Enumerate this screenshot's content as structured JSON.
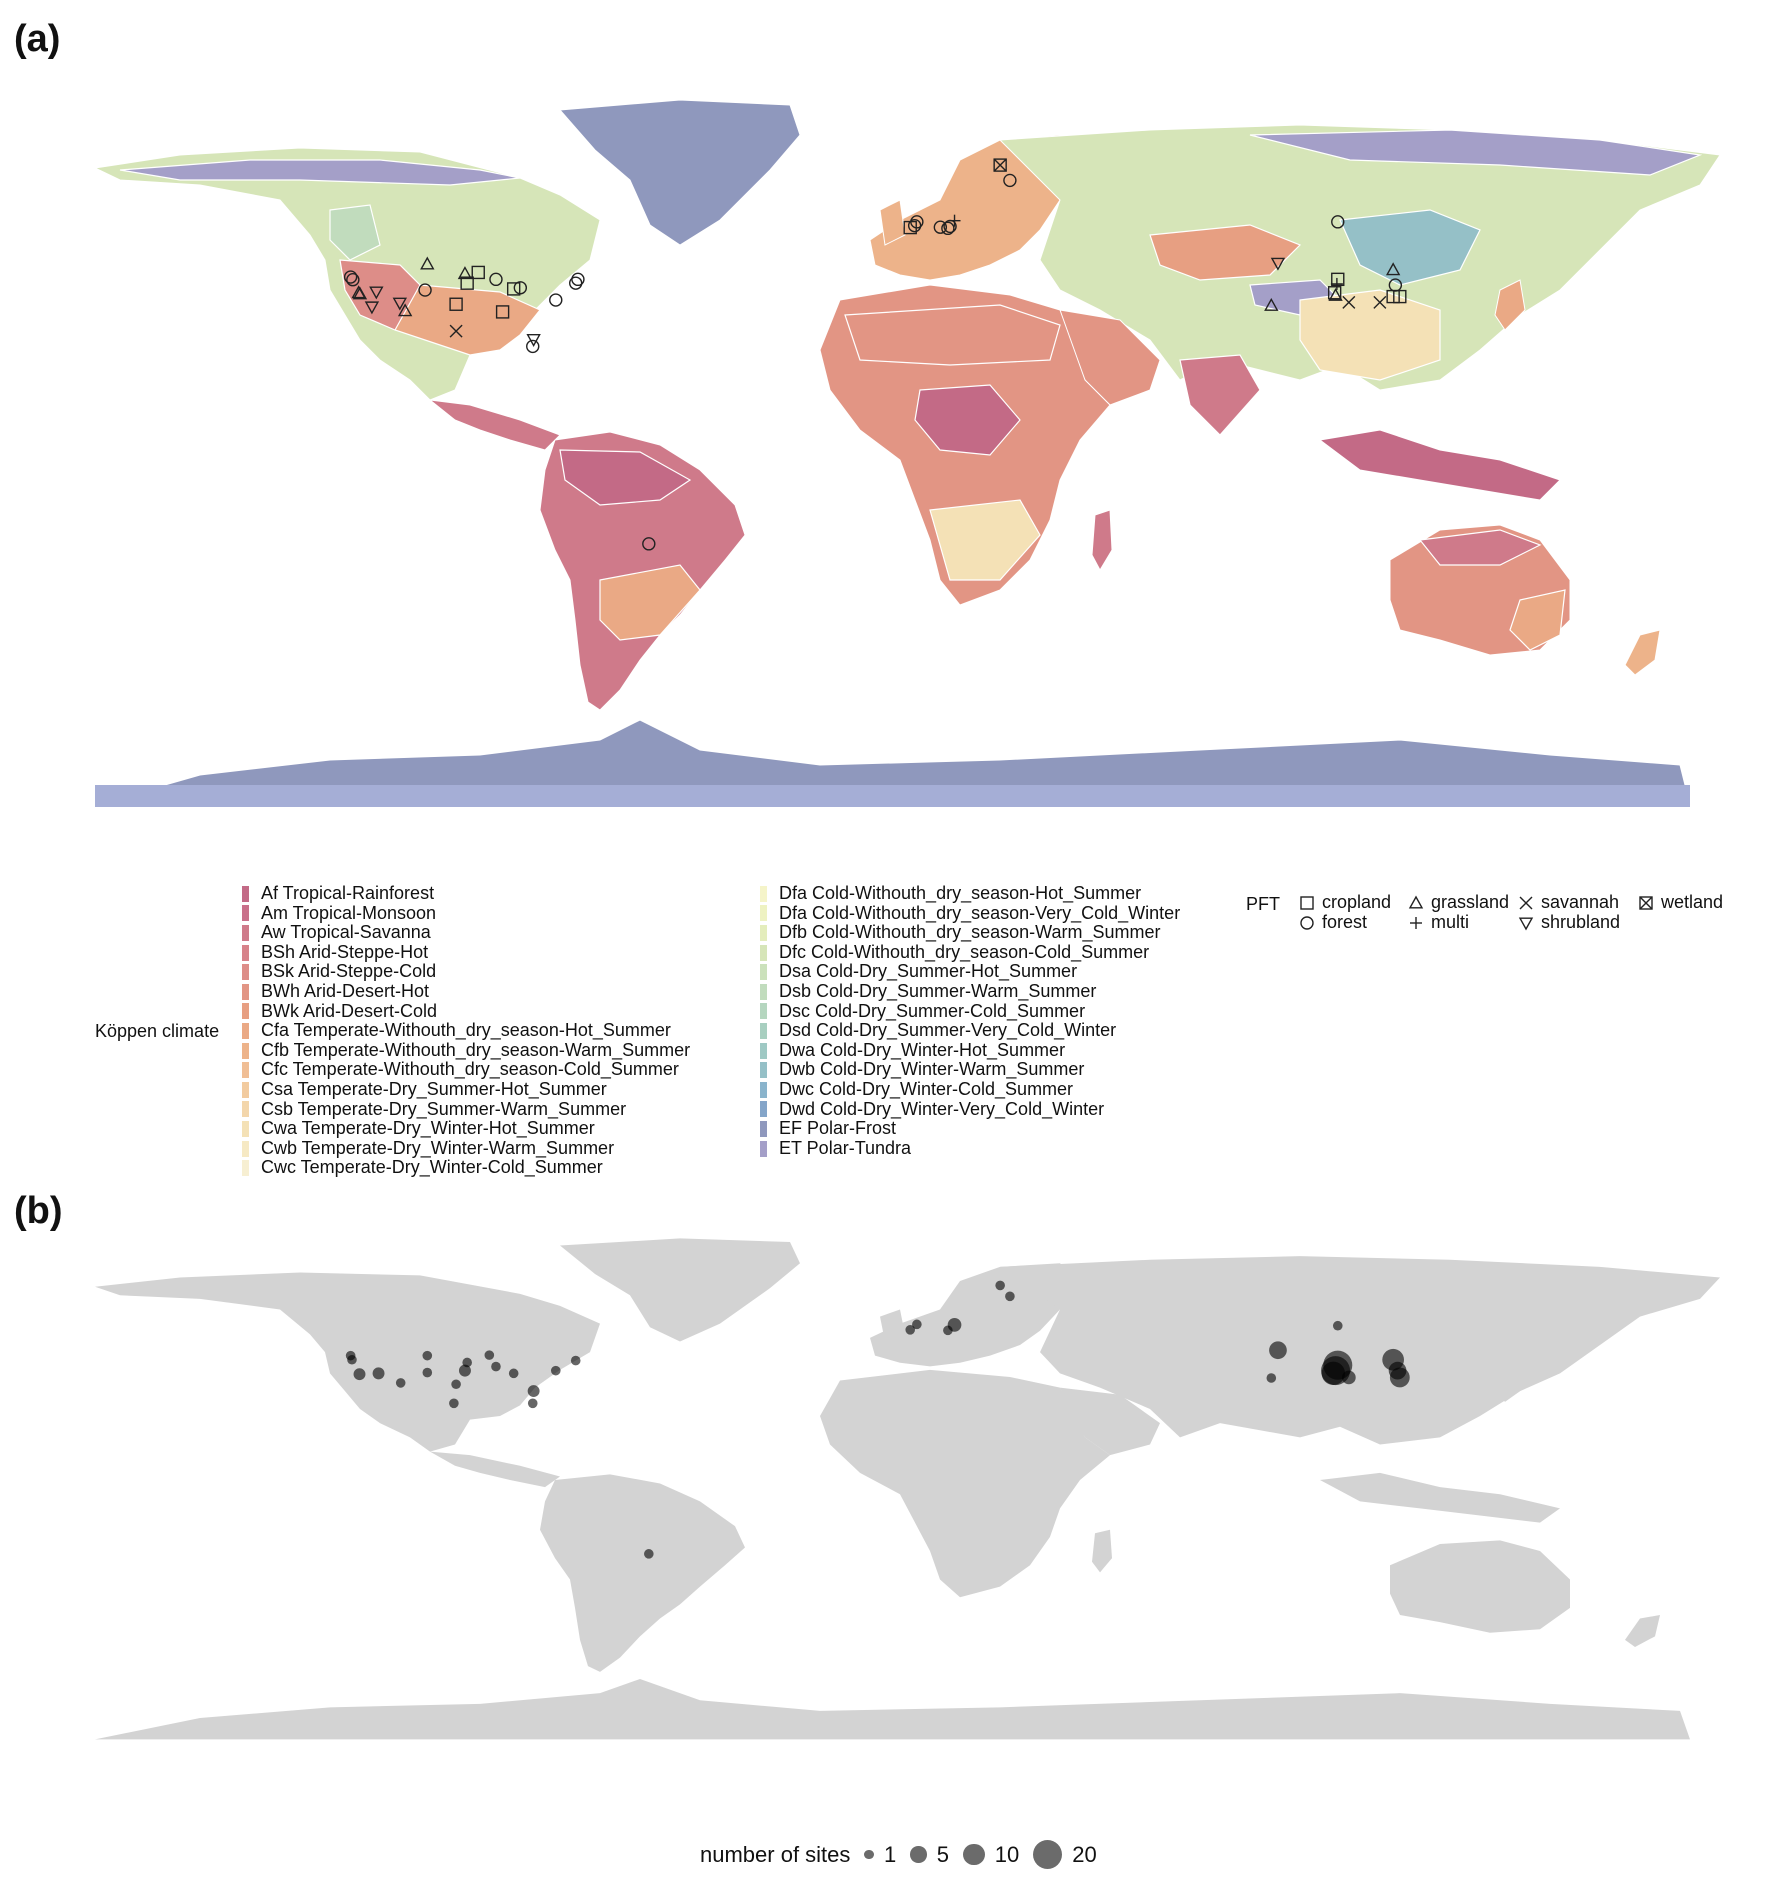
{
  "panels": {
    "a_label": "(a)",
    "b_label": "(b)"
  },
  "colors": {
    "land_b": "#d3d3d3",
    "boundary": "#ffffff",
    "antarctica": "#8f98bd",
    "antarctica_shelf": "#a5aed6",
    "site_dot": "#000000"
  },
  "legend_climate": {
    "title": "Köppen climate",
    "items": [
      {
        "code": "Af",
        "label": "Af Tropical-Rainforest",
        "color": "#c36a86"
      },
      {
        "code": "Am",
        "label": "Am Tropical-Monsoon",
        "color": "#c9708a"
      },
      {
        "code": "Aw",
        "label": "Aw Tropical-Savanna",
        "color": "#cf7a8a"
      },
      {
        "code": "BSh",
        "label": "BSh Arid-Steppe-Hot",
        "color": "#d7828a"
      },
      {
        "code": "BSk",
        "label": "BSk Arid-Steppe-Cold",
        "color": "#dd8d88"
      },
      {
        "code": "BWh",
        "label": "BWh Arid-Desert-Hot",
        "color": "#e29584"
      },
      {
        "code": "BWk",
        "label": "BWk Arid-Desert-Cold",
        "color": "#e79f82"
      },
      {
        "code": "Cfa",
        "label": "Cfa Temperate-Withouth_dry_season-Hot_Summer",
        "color": "#eaa985"
      },
      {
        "code": "Cfb",
        "label": "Cfb Temperate-Withouth_dry_season-Warm_Summer",
        "color": "#edb38a"
      },
      {
        "code": "Cfc",
        "label": "Cfc Temperate-Withouth_dry_season-Cold_Summer",
        "color": "#f0be95"
      },
      {
        "code": "Csa",
        "label": "Csa Temperate-Dry_Summer-Hot_Summer",
        "color": "#f2cb9f"
      },
      {
        "code": "Csb",
        "label": "Csb Temperate-Dry_Summer-Warm_Summer",
        "color": "#f3d6ab"
      },
      {
        "code": "Cwa",
        "label": "Cwa Temperate-Dry_Winter-Hot_Summer",
        "color": "#f4e1b6"
      },
      {
        "code": "Cwb",
        "label": "Cwb Temperate-Dry_Winter-Warm_Summer",
        "color": "#f6e9c4"
      },
      {
        "code": "Cwc",
        "label": "Cwc Temperate-Dry_Winter-Cold_Summer",
        "color": "#f7efd2"
      },
      {
        "code": "Dfa",
        "label": "Dfa Cold-Withouth_dry_season-Hot_Summer",
        "color": "#f5f4c9"
      },
      {
        "code": "Dfa2",
        "label": "Dfa Cold-Withouth_dry_season-Very_Cold_Winter",
        "color": "#eef2c2"
      },
      {
        "code": "Dfb",
        "label": "Dfb Cold-Withouth_dry_season-Warm_Summer",
        "color": "#e4edbc"
      },
      {
        "code": "Dfc",
        "label": "Dfc Cold-Withouth_dry_season-Cold_Summer",
        "color": "#d6e5b8"
      },
      {
        "code": "Dsa",
        "label": "Dsa Cold-Dry_Summer-Hot_Summer",
        "color": "#cbe1bb"
      },
      {
        "code": "Dsb",
        "label": "Dsb Cold-Dry_Summer-Warm_Summer",
        "color": "#c1dcbd"
      },
      {
        "code": "Dsc",
        "label": "Dsc Cold-Dry_Summer-Cold_Summer",
        "color": "#b5d6bf"
      },
      {
        "code": "Dsd",
        "label": "Dsd Cold-Dry_Summer-Very_Cold_Winter",
        "color": "#a8cfc0"
      },
      {
        "code": "Dwa",
        "label": "Dwa Cold-Dry_Winter-Hot_Summer",
        "color": "#9fc9c4"
      },
      {
        "code": "Dwb",
        "label": "Dwb Cold-Dry_Winter-Warm_Summer",
        "color": "#95c0c7"
      },
      {
        "code": "Dwc",
        "label": "Dwc Cold-Dry_Winter-Cold_Summer",
        "color": "#8ab4cc"
      },
      {
        "code": "Dwd",
        "label": "Dwd Cold-Dry_Winter-Very_Cold_Winter",
        "color": "#84a5c9"
      },
      {
        "code": "EF",
        "label": "EF Polar-Frost",
        "color": "#8f98bd"
      },
      {
        "code": "ET",
        "label": "ET Polar-Tundra",
        "color": "#a49fc8"
      }
    ]
  },
  "legend_pft": {
    "title": "PFT",
    "items": [
      {
        "label": "cropland",
        "symbol": "square"
      },
      {
        "label": "forest",
        "symbol": "circle"
      },
      {
        "label": "grassland",
        "symbol": "triangle-up"
      },
      {
        "label": "multi",
        "symbol": "plus"
      },
      {
        "label": "savannah",
        "symbol": "cross"
      },
      {
        "label": "shrubland",
        "symbol": "triangle-down"
      },
      {
        "label": "wetland",
        "symbol": "square-cross"
      }
    ]
  },
  "legend_size": {
    "title": "number of sites",
    "items": [
      {
        "label": "1",
        "value": 1
      },
      {
        "label": "5",
        "value": 5
      },
      {
        "label": "10",
        "value": 10
      },
      {
        "label": "20",
        "value": 20
      }
    ]
  },
  "sites_a": [
    {
      "lon": -122.3,
      "lat": 38.6,
      "pft": "circle"
    },
    {
      "lon": -121.8,
      "lat": 37.9,
      "pft": "circle"
    },
    {
      "lon": -120.5,
      "lat": 34.5,
      "pft": "triangle-up"
    },
    {
      "lon": -120.2,
      "lat": 34.2,
      "pft": "triangle-up"
    },
    {
      "lon": -116.5,
      "lat": 34.7,
      "pft": "triangle-down"
    },
    {
      "lon": -117.5,
      "lat": 30.8,
      "pft": "triangle-down"
    },
    {
      "lon": -111.2,
      "lat": 31.8,
      "pft": "triangle-down"
    },
    {
      "lon": -110.0,
      "lat": 29.8,
      "pft": "triangle-up"
    },
    {
      "lon": -105.0,
      "lat": 42.0,
      "pft": "triangle-up"
    },
    {
      "lon": -105.5,
      "lat": 35.2,
      "pft": "circle"
    },
    {
      "lon": -96.5,
      "lat": 39.5,
      "pft": "triangle-up"
    },
    {
      "lon": -93.5,
      "lat": 39.8,
      "pft": "square"
    },
    {
      "lon": -96.0,
      "lat": 37.0,
      "pft": "square"
    },
    {
      "lon": -98.5,
      "lat": 31.5,
      "pft": "square"
    },
    {
      "lon": -89.5,
      "lat": 38.0,
      "pft": "circle"
    },
    {
      "lon": -85.5,
      "lat": 35.5,
      "pft": "square"
    },
    {
      "lon": -84.0,
      "lat": 35.8,
      "pft": "circle"
    },
    {
      "lon": -88.0,
      "lat": 29.5,
      "pft": "square"
    },
    {
      "lon": -76.0,
      "lat": 32.6,
      "pft": "circle"
    },
    {
      "lon": -71.5,
      "lat": 37.0,
      "pft": "circle"
    },
    {
      "lon": -71.0,
      "lat": 38.0,
      "pft": "circle"
    },
    {
      "lon": -98.5,
      "lat": 24.5,
      "pft": "cross"
    },
    {
      "lon": -81.0,
      "lat": 22.3,
      "pft": "triangle-down"
    },
    {
      "lon": -81.2,
      "lat": 20.5,
      "pft": "circle"
    },
    {
      "lon": -55.0,
      "lat": -31.0,
      "pft": "circle"
    },
    {
      "lon": 4.0,
      "lat": 51.5,
      "pft": "square"
    },
    {
      "lon": 5.0,
      "lat": 52.0,
      "pft": "circle"
    },
    {
      "lon": 5.5,
      "lat": 53.0,
      "pft": "circle"
    },
    {
      "lon": 10.8,
      "lat": 51.6,
      "pft": "circle"
    },
    {
      "lon": 12.5,
      "lat": 51.3,
      "pft": "circle"
    },
    {
      "lon": 13.0,
      "lat": 51.8,
      "pft": "circle"
    },
    {
      "lon": 14.0,
      "lat": 53.3,
      "pft": "plus"
    },
    {
      "lon": 24.3,
      "lat": 67.8,
      "pft": "square-cross"
    },
    {
      "lon": 26.5,
      "lat": 63.8,
      "pft": "circle"
    },
    {
      "lon": 100.5,
      "lat": 53.0,
      "pft": "circle"
    },
    {
      "lon": 87.0,
      "lat": 42.2,
      "pft": "triangle-down"
    },
    {
      "lon": 85.5,
      "lat": 31.2,
      "pft": "triangle-up"
    },
    {
      "lon": 100.5,
      "lat": 38.0,
      "pft": "square"
    },
    {
      "lon": 100.3,
      "lat": 36.8,
      "pft": "plus"
    },
    {
      "lon": 99.8,
      "lat": 34.5,
      "pft": "square"
    },
    {
      "lon": 100.0,
      "lat": 33.8,
      "pft": "triangle-up"
    },
    {
      "lon": 103.0,
      "lat": 32.0,
      "pft": "cross"
    },
    {
      "lon": 113.0,
      "lat": 40.5,
      "pft": "triangle-up"
    },
    {
      "lon": 113.5,
      "lat": 36.5,
      "pft": "circle"
    },
    {
      "lon": 113.0,
      "lat": 33.5,
      "pft": "square"
    },
    {
      "lon": 114.5,
      "lat": 33.5,
      "pft": "square"
    },
    {
      "lon": 110.0,
      "lat": 32.0,
      "pft": "cross"
    }
  ],
  "sites_b": [
    {
      "lon": -122.3,
      "lat": 42.0,
      "n": 1
    },
    {
      "lon": -122.0,
      "lat": 40.5,
      "n": 1
    },
    {
      "lon": -120.3,
      "lat": 35.2,
      "n": 2
    },
    {
      "lon": -116.0,
      "lat": 35.5,
      "n": 2
    },
    {
      "lon": -111.0,
      "lat": 32.0,
      "n": 1
    },
    {
      "lon": -105.0,
      "lat": 42.0,
      "n": 1
    },
    {
      "lon": -105.0,
      "lat": 35.8,
      "n": 1
    },
    {
      "lon": -96.0,
      "lat": 39.5,
      "n": 1
    },
    {
      "lon": -91.0,
      "lat": 42.2,
      "n": 1
    },
    {
      "lon": -96.5,
      "lat": 36.5,
      "n": 2
    },
    {
      "lon": -98.5,
      "lat": 31.5,
      "n": 1
    },
    {
      "lon": -89.5,
      "lat": 38.0,
      "n": 1
    },
    {
      "lon": -85.5,
      "lat": 35.5,
      "n": 1
    },
    {
      "lon": -76.0,
      "lat": 36.5,
      "n": 1
    },
    {
      "lon": -71.5,
      "lat": 40.2,
      "n": 1
    },
    {
      "lon": -99.0,
      "lat": 24.5,
      "n": 1
    },
    {
      "lon": -81.0,
      "lat": 29.0,
      "n": 2
    },
    {
      "lon": -81.2,
      "lat": 24.5,
      "n": 1
    },
    {
      "lon": -55.0,
      "lat": -30.8,
      "n": 1
    },
    {
      "lon": 4.0,
      "lat": 51.5,
      "n": 1
    },
    {
      "lon": 5.5,
      "lat": 53.5,
      "n": 1
    },
    {
      "lon": 12.5,
      "lat": 51.3,
      "n": 1
    },
    {
      "lon": 14.0,
      "lat": 53.3,
      "n": 3
    },
    {
      "lon": 24.3,
      "lat": 67.8,
      "n": 1
    },
    {
      "lon": 26.5,
      "lat": 63.8,
      "n": 1
    },
    {
      "lon": 100.5,
      "lat": 53.0,
      "n": 1
    },
    {
      "lon": 87.0,
      "lat": 44.0,
      "n": 6
    },
    {
      "lon": 85.5,
      "lat": 33.8,
      "n": 1
    },
    {
      "lon": 100.5,
      "lat": 38.5,
      "n": 20
    },
    {
      "lon": 100.0,
      "lat": 36.5,
      "n": 20
    },
    {
      "lon": 99.5,
      "lat": 35.5,
      "n": 12
    },
    {
      "lon": 103.0,
      "lat": 34.0,
      "n": 3
    },
    {
      "lon": 113.0,
      "lat": 40.5,
      "n": 10
    },
    {
      "lon": 114.0,
      "lat": 36.5,
      "n": 6
    },
    {
      "lon": 114.5,
      "lat": 34.0,
      "n": 8
    }
  ]
}
